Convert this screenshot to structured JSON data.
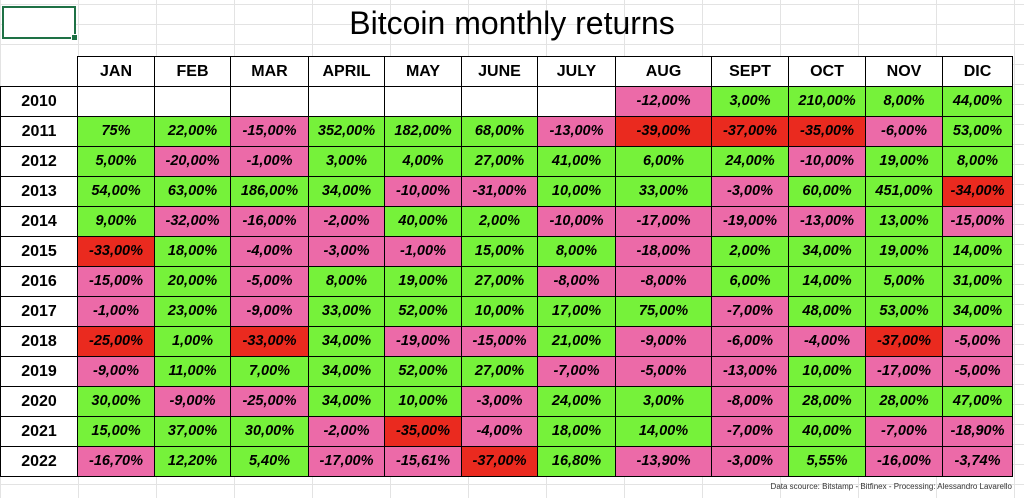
{
  "title": "Bitcoin monthly returns",
  "source": "Data scource: Bitstamp - Bitfinex - Processing: Alessandro Lavarello",
  "colors": {
    "positive": "#76f23a",
    "negative": "#ec6aa8",
    "strong_negative": "#ea2a1f"
  },
  "chart_data": {
    "type": "table",
    "title": "Bitcoin monthly returns",
    "columns": [
      "JAN",
      "FEB",
      "MAR",
      "APRIL",
      "MAY",
      "JUNE",
      "JULY",
      "AUG",
      "SEPT",
      "OCT",
      "NOV",
      "DIC"
    ],
    "rows": [
      {
        "year": "2010",
        "values": [
          "",
          "",
          "",
          "",
          "",
          "",
          "",
          "-12,00%",
          "3,00%",
          "210,00%",
          "8,00%",
          "44,00%"
        ],
        "highlight": []
      },
      {
        "year": "2011",
        "values": [
          "75%",
          "22,00%",
          "-15,00%",
          "352,00%",
          "182,00%",
          "68,00%",
          "-13,00%",
          "-39,00%",
          "-37,00%",
          "-35,00%",
          "-6,00%",
          "53,00%"
        ],
        "highlight": [
          7,
          8,
          9
        ]
      },
      {
        "year": "2012",
        "values": [
          "5,00%",
          "-20,00%",
          "-1,00%",
          "3,00%",
          "4,00%",
          "27,00%",
          "41,00%",
          "6,00%",
          "24,00%",
          "-10,00%",
          "19,00%",
          "8,00%"
        ],
        "highlight": []
      },
      {
        "year": "2013",
        "values": [
          "54,00%",
          "63,00%",
          "186,00%",
          "34,00%",
          "-10,00%",
          "-31,00%",
          "10,00%",
          "33,00%",
          "-3,00%",
          "60,00%",
          "451,00%",
          "-34,00%"
        ],
        "highlight": [
          11
        ]
      },
      {
        "year": "2014",
        "values": [
          "9,00%",
          "-32,00%",
          "-16,00%",
          "-2,00%",
          "40,00%",
          "2,00%",
          "-10,00%",
          "-17,00%",
          "-19,00%",
          "-13,00%",
          "13,00%",
          "-15,00%"
        ],
        "highlight": []
      },
      {
        "year": "2015",
        "values": [
          "-33,00%",
          "18,00%",
          "-4,00%",
          "-3,00%",
          "-1,00%",
          "15,00%",
          "8,00%",
          "-18,00%",
          "2,00%",
          "34,00%",
          "19,00%",
          "14,00%"
        ],
        "highlight": [
          0
        ]
      },
      {
        "year": "2016",
        "values": [
          "-15,00%",
          "20,00%",
          "-5,00%",
          "8,00%",
          "19,00%",
          "27,00%",
          "-8,00%",
          "-8,00%",
          "6,00%",
          "14,00%",
          "5,00%",
          "31,00%"
        ],
        "highlight": []
      },
      {
        "year": "2017",
        "values": [
          "-1,00%",
          "23,00%",
          "-9,00%",
          "33,00%",
          "52,00%",
          "10,00%",
          "17,00%",
          "75,00%",
          "-7,00%",
          "48,00%",
          "53,00%",
          "34,00%"
        ],
        "highlight": []
      },
      {
        "year": "2018",
        "values": [
          "-25,00%",
          "1,00%",
          "-33,00%",
          "34,00%",
          "-19,00%",
          "-15,00%",
          "21,00%",
          "-9,00%",
          "-6,00%",
          "-4,00%",
          "-37,00%",
          "-5,00%"
        ],
        "highlight": [
          0,
          2,
          10
        ]
      },
      {
        "year": "2019",
        "values": [
          "-9,00%",
          "11,00%",
          "7,00%",
          "34,00%",
          "52,00%",
          "27,00%",
          "-7,00%",
          "-5,00%",
          "-13,00%",
          "10,00%",
          "-17,00%",
          "-5,00%"
        ],
        "highlight": []
      },
      {
        "year": "2020",
        "values": [
          "30,00%",
          "-9,00%",
          "-25,00%",
          "34,00%",
          "10,00%",
          "-3,00%",
          "24,00%",
          "3,00%",
          "-8,00%",
          "28,00%",
          "28,00%",
          "47,00%"
        ],
        "highlight": []
      },
      {
        "year": "2021",
        "values": [
          "15,00%",
          "37,00%",
          "30,00%",
          "-2,00%",
          "-35,00%",
          "-4,00%",
          "18,00%",
          "14,00%",
          "-7,00%",
          "40,00%",
          "-7,00%",
          "-18,90%"
        ],
        "highlight": [
          4
        ]
      },
      {
        "year": "2022",
        "values": [
          "-16,70%",
          "12,20%",
          "5,40%",
          "-17,00%",
          "-15,61%",
          "-37,00%",
          "16,80%",
          "-13,90%",
          "-3,00%",
          "5,55%",
          "-16,00%",
          "-3,74%"
        ],
        "highlight": [
          5
        ]
      }
    ]
  }
}
